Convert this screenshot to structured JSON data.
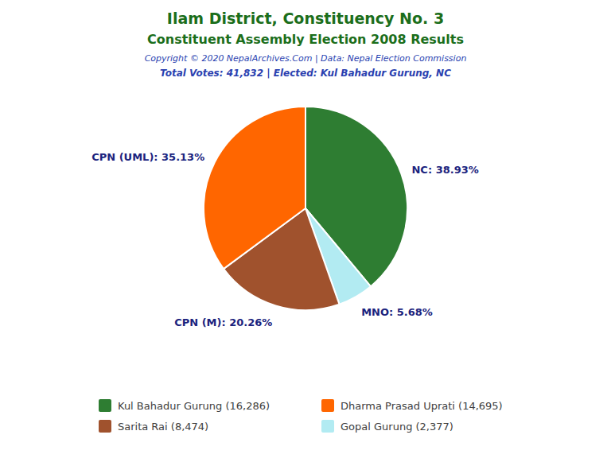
{
  "chart_data": {
    "type": "pie",
    "title": "Ilam District, Constituency No. 3",
    "subtitle": "Constituent Assembly Election 2008 Results",
    "annotations": [
      "Copyright © 2020 NepalArchives.Com | Data: Nepal Election Commission",
      "Total Votes: 41,832 | Elected: Kul Bahadur Gurung, NC"
    ],
    "categories": [
      "NC",
      "MNO",
      "CPN (M)",
      "CPN (UML)"
    ],
    "values": [
      38.93,
      5.68,
      20.26,
      35.13
    ],
    "value_labels": [
      "NC: 38.93%",
      "MNO: 5.68%",
      "CPN (M): 20.26%",
      "CPN (UML): 35.13%"
    ],
    "data_labels": true,
    "colors": [
      "#2e7d32",
      "#b2ebf2",
      "#a0522d",
      "#ff6600"
    ],
    "legend": "bottom",
    "legend_entries": [
      {
        "label": "Kul Bahadur Gurung (16,286)",
        "color": "#2e7d32"
      },
      {
        "label": "Dharma Prasad Uprati (14,695)",
        "color": "#ff6600"
      },
      {
        "label": "Sarita Rai (8,474)",
        "color": "#a0522d"
      },
      {
        "label": "Gopal Gurung (2,377)",
        "color": "#b2ebf2"
      }
    ]
  }
}
